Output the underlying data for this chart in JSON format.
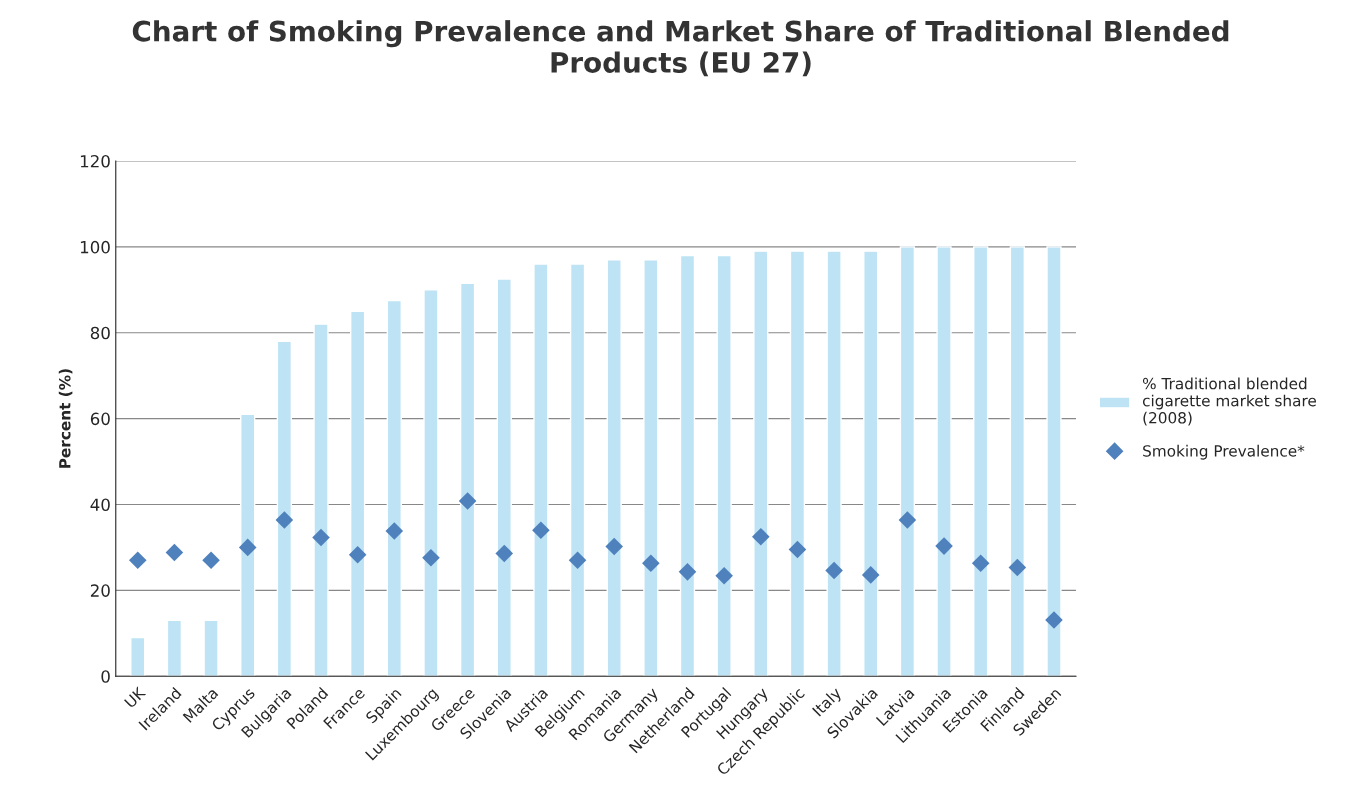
{
  "chart_data": {
    "type": "bar",
    "title": "Chart of Smoking Prevalence and Market Share of Traditional Blended\nProducts (EU 27)",
    "ylabel": "Percent (%)",
    "categories": [
      "UK",
      "Ireland",
      "Malta",
      "Cyprus",
      "Bulgaria",
      "Poland",
      "France",
      "Spain",
      "Luxembourg",
      "Greece",
      "Slovenia",
      "Austria",
      "Belgium",
      "Romania",
      "Germany",
      "Netherland",
      "Portugal",
      "Hungary",
      "Czech Republic",
      "Italy",
      "Slovakia",
      "Latvia",
      "Lithuania",
      "Estonia",
      "Finland",
      "Sweden"
    ],
    "series": [
      {
        "name": "% Traditional blended cigarette market share (2008)",
        "color": "#bde3f5",
        "values": [
          9,
          13,
          13,
          61,
          78,
          82,
          85,
          87.5,
          90,
          91.5,
          92.5,
          96,
          96,
          97,
          97,
          98,
          98,
          99,
          99,
          99,
          99,
          100,
          100,
          100,
          100,
          100
        ]
      },
      {
        "name": "Smoking Prevalence*",
        "type": "scatter",
        "color": "#4f81bd",
        "marker": "diamond",
        "values": [
          27,
          28.8,
          27,
          30,
          36.4,
          32.3,
          28.3,
          33.8,
          27.6,
          40.8,
          28.6,
          34,
          27,
          30.2,
          26.3,
          24.3,
          23.4,
          32.5,
          29.5,
          24.6,
          23.6,
          36.4,
          30.3,
          26.3,
          25.3,
          13.1
        ]
      }
    ],
    "ylim": [
      0,
      120
    ],
    "yticks": [
      0,
      20,
      40,
      60,
      80,
      100,
      120
    ],
    "grid": "y",
    "legend": "right"
  }
}
